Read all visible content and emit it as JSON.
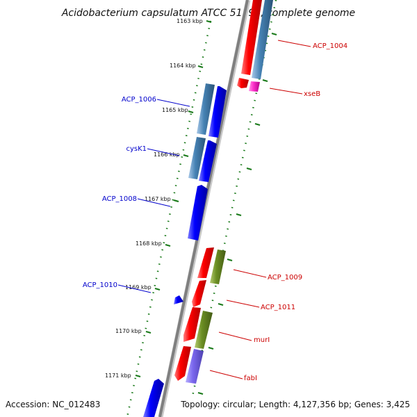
{
  "title": "Acidobacterium capsulatum ATCC 51196, complete genome",
  "footer": {
    "accession": "Accession: NC_012483",
    "topology": "Topology: circular; Length: 4,127,356 bp; Genes: 3,425"
  },
  "colors": {
    "backbone": "#8a8a8a",
    "ticks": "#1a7a1a",
    "forward_cds": "#ff0000",
    "forward_gene": "#4682b4",
    "reverse_cds": "#0000ff",
    "reverse_gene": "#4682b4",
    "trna": "#ff33cc",
    "olive_feature": "#6b8e23",
    "purple_feature": "#7b68ee",
    "forward_label": "#cc0000",
    "reverse_label": "#0000cc"
  },
  "ticks": [
    "1163 kbp",
    "1164 kbp",
    "1165 kbp",
    "1166 kbp",
    "1167 kbp",
    "1168 kbp",
    "1169 kbp",
    "1170 kbp",
    "1171 kbp"
  ],
  "labels": {
    "forward": [
      "ACP_1004",
      "xseB",
      "ACP_1009",
      "ACP_1011",
      "murI",
      "fabI"
    ],
    "reverse": [
      "ACP_1006",
      "cysK1",
      "ACP_1008",
      "ACP_1010"
    ]
  }
}
